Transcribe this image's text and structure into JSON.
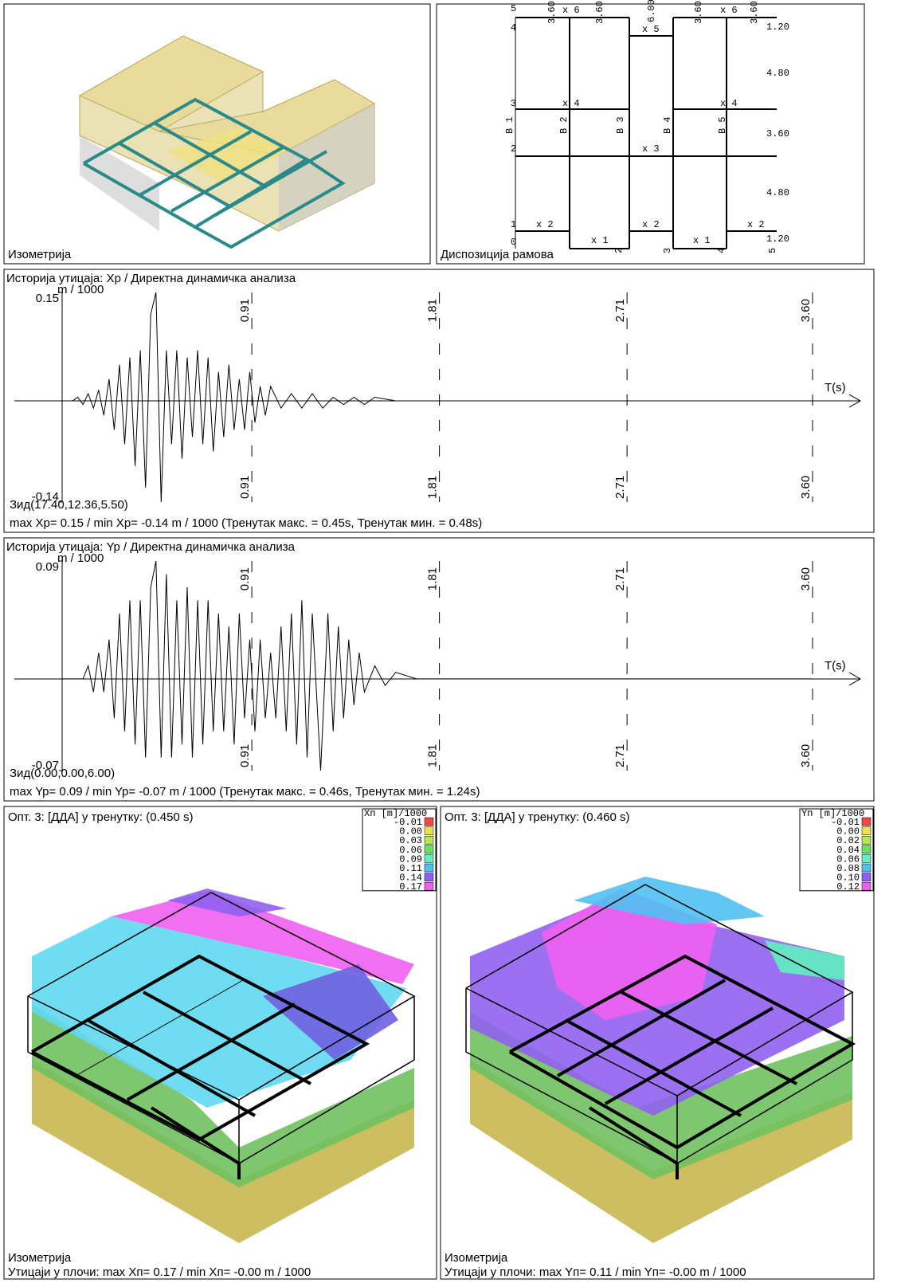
{
  "iso_panel": {
    "caption": "Изометрија"
  },
  "plan": {
    "title": "Диспозиција рамова",
    "labels": [
      "5",
      "4",
      "3",
      "2",
      "1",
      "0",
      "x 6",
      "x 6",
      "x 5",
      "x 4",
      "x 4",
      "x 3",
      "x 2",
      "x 2",
      "x 2",
      "x 1",
      "x 1",
      "В 1",
      "В 2",
      "В 3",
      "В 4",
      "В 5",
      "3.60",
      "3.60",
      "6.00",
      "3.60",
      "3.60",
      "1.20",
      "4.80",
      "3.60",
      "4.80",
      "1.20",
      "2",
      "3",
      "4",
      "5"
    ]
  },
  "chart_data": [
    {
      "type": "line",
      "title": "Историја утицаја: Xp / Директна динамичка анализа",
      "ylabel": "m / 1000",
      "xlabel": "T(s)",
      "location": "Зид(17.40,12.36,5.50)",
      "summary": "max Xp= 0.15 / min Xp= -0.14 m / 1000   (Тренутак макс. = 0.45s, Тренутак мин. = 0.48s)",
      "xlim": [
        0,
        3.6
      ],
      "xticks": [
        0.91,
        1.81,
        2.71,
        {
          "value": 3.6,
          "label": "3.60"
        }
      ],
      "ylim": [
        -0.14,
        0.15
      ],
      "yticks": [
        -0.14,
        0.15
      ],
      "series": [
        {
          "color": "#000000",
          "x": [
            0,
            0.025,
            0.05,
            0.075,
            0.1,
            0.125,
            0.15,
            0.175,
            0.2,
            0.225,
            0.25,
            0.275,
            0.3,
            0.325,
            0.35,
            0.375,
            0.4,
            0.425,
            0.45,
            0.475,
            0.5,
            0.525,
            0.55,
            0.575,
            0.6,
            0.625,
            0.65,
            0.675,
            0.7,
            0.725,
            0.75,
            0.775,
            0.8,
            0.825,
            0.85,
            0.875,
            0.9,
            0.925,
            0.95,
            0.975,
            1.0,
            1.05,
            1.1,
            1.15,
            1.2,
            1.25,
            1.3,
            1.35,
            1.4,
            1.45,
            1.5,
            1.6,
            1.8,
            3.6
          ],
          "values": [
            0,
            0,
            0,
            0.005,
            -0.005,
            0.01,
            -0.01,
            0.015,
            -0.02,
            0.03,
            -0.04,
            0.05,
            -0.06,
            0.06,
            -0.09,
            0.07,
            -0.12,
            0.12,
            0.15,
            -0.14,
            0.07,
            -0.06,
            0.07,
            -0.08,
            0.06,
            -0.05,
            0.07,
            -0.06,
            0.06,
            -0.07,
            0.04,
            -0.05,
            0.05,
            -0.04,
            0.03,
            -0.04,
            0.04,
            -0.03,
            0.02,
            -0.02,
            0.02,
            -0.01,
            0.01,
            -0.01,
            0.01,
            -0.01,
            0.005,
            -0.005,
            0.005,
            -0.005,
            0.005,
            0,
            0,
            0
          ]
        }
      ]
    },
    {
      "type": "line",
      "title": "Историја утицаја: Yp / Директна динамичка анализа",
      "ylabel": "m / 1000",
      "xlabel": "T(s)",
      "location": "Зид(0.00,0.00,6.00)",
      "summary": "max Yp= 0.09 / min Yp= -0.07 m / 1000   (Тренутак макс. = 0.46s, Тренутак мин. = 1.24s)",
      "xlim": [
        0,
        3.6
      ],
      "xticks": [
        0.91,
        1.81,
        2.71,
        {
          "value": 3.6,
          "label": "3.60"
        }
      ],
      "ylim": [
        -0.07,
        0.09
      ],
      "yticks": [
        -0.07,
        0.09
      ],
      "series": [
        {
          "color": "#000000",
          "x": [
            0,
            0.025,
            0.05,
            0.075,
            0.1,
            0.125,
            0.15,
            0.175,
            0.2,
            0.225,
            0.25,
            0.275,
            0.3,
            0.325,
            0.35,
            0.375,
            0.4,
            0.425,
            0.45,
            0.475,
            0.5,
            0.525,
            0.55,
            0.575,
            0.6,
            0.625,
            0.65,
            0.675,
            0.7,
            0.725,
            0.75,
            0.775,
            0.8,
            0.825,
            0.85,
            0.875,
            0.9,
            0.925,
            0.95,
            0.975,
            1.0,
            1.025,
            1.05,
            1.075,
            1.1,
            1.125,
            1.15,
            1.175,
            1.2,
            1.24,
            1.275,
            1.3,
            1.325,
            1.35,
            1.375,
            1.4,
            1.425,
            1.45,
            1.5,
            1.55,
            1.6,
            1.7,
            3.6
          ],
          "values": [
            0,
            0,
            0,
            0,
            0,
            0.01,
            -0.01,
            0.02,
            -0.01,
            0.03,
            -0.03,
            0.05,
            -0.04,
            0.06,
            -0.05,
            0.06,
            -0.06,
            0.07,
            0.09,
            -0.06,
            0.08,
            -0.06,
            0.06,
            -0.05,
            0.07,
            -0.06,
            0.06,
            -0.05,
            0.06,
            -0.04,
            0.05,
            -0.04,
            0.04,
            -0.05,
            0.05,
            -0.03,
            0.03,
            -0.04,
            0.03,
            -0.03,
            0.02,
            -0.03,
            0.04,
            -0.04,
            0.05,
            -0.05,
            0.06,
            -0.06,
            0.05,
            -0.07,
            0.05,
            -0.04,
            0.04,
            -0.03,
            0.03,
            -0.02,
            0.02,
            -0.01,
            0.01,
            -0.005,
            0.005,
            0,
            0
          ]
        }
      ]
    }
  ],
  "contours": [
    {
      "title": "Опт. 3: [ДДА] у тренутку: (0.450 s)",
      "legend_title": "Xп [m]/1000",
      "legend": [
        {
          "label": "-0.01",
          "color": "#f04848"
        },
        {
          "label": "0.00",
          "color": "#f0e048"
        },
        {
          "label": "0.03",
          "color": "#b8e848"
        },
        {
          "label": "0.06",
          "color": "#70e060"
        },
        {
          "label": "0.09",
          "color": "#60f0c0"
        },
        {
          "label": "0.11",
          "color": "#50c0f0"
        },
        {
          "label": "0.14",
          "color": "#9060f0"
        },
        {
          "label": "0.17",
          "color": "#f060f0"
        }
      ],
      "caption": "Изометрија",
      "summary": "Утицаји у плочи: max Xп= 0.17 / min Xп= -0.00 m / 1000"
    },
    {
      "title": "Опт. 3: [ДДА] у тренутку: (0.460 s)",
      "legend_title": "Yп [m]/1000",
      "legend": [
        {
          "label": "-0.01",
          "color": "#f04848"
        },
        {
          "label": "0.00",
          "color": "#f0e048"
        },
        {
          "label": "0.02",
          "color": "#b8e848"
        },
        {
          "label": "0.04",
          "color": "#70e060"
        },
        {
          "label": "0.06",
          "color": "#60f0c0"
        },
        {
          "label": "0.08",
          "color": "#50c0f0"
        },
        {
          "label": "0.10",
          "color": "#9060f0"
        },
        {
          "label": "0.12",
          "color": "#f060f0"
        }
      ],
      "caption": "Изометрија",
      "summary": "Утицаји у плочи: max Yп= 0.11 / min Yп= -0.00 m / 1000"
    }
  ]
}
